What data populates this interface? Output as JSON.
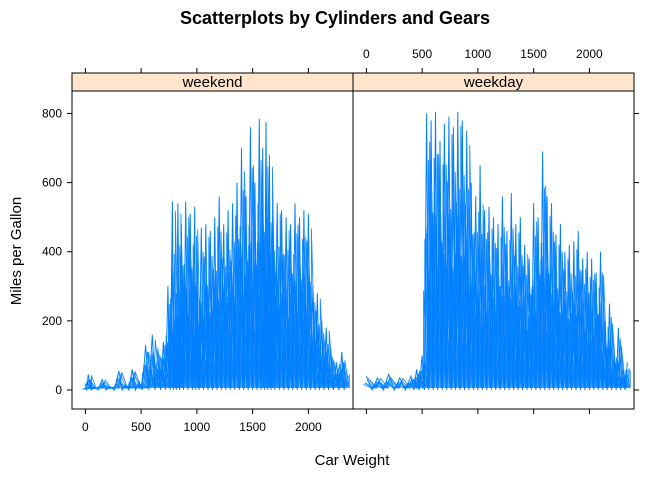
{
  "chart_data": {
    "type": "line",
    "title": "Scatterplots by Cylinders and Gears",
    "xlabel": "Car Weight",
    "ylabel": "Miles per Gallon",
    "xlim": [
      -120,
      2400
    ],
    "ylim": [
      -55,
      865
    ],
    "x_ticks": [
      0,
      500,
      1000,
      1500,
      2000
    ],
    "y_ticks": [
      0,
      200,
      400,
      600,
      800
    ],
    "line_color": "#0080ff",
    "strip_color": "#ffe5cc",
    "panels": [
      {
        "name": "weekend",
        "x": [
          0,
          25,
          80,
          150,
          220,
          300,
          360,
          420,
          480,
          540,
          600,
          650,
          700,
          740,
          780,
          800,
          830,
          860,
          900,
          940,
          980,
          1000,
          1040,
          1080,
          1120,
          1160,
          1200,
          1240,
          1280,
          1320,
          1360,
          1400,
          1440,
          1480,
          1520,
          1560,
          1590,
          1620,
          1650,
          1680,
          1720,
          1760,
          1800,
          1840,
          1880,
          1920,
          1960,
          2000,
          2040,
          2080,
          2120,
          2160,
          2200,
          2250,
          2300,
          2340
        ],
        "y": [
          5,
          45,
          8,
          30,
          10,
          55,
          15,
          60,
          25,
          130,
          160,
          120,
          140,
          300,
          545,
          200,
          540,
          480,
          545,
          510,
          530,
          300,
          470,
          480,
          460,
          500,
          560,
          480,
          520,
          540,
          600,
          700,
          560,
          760,
          600,
          785,
          700,
          775,
          680,
          500,
          540,
          520,
          500,
          480,
          540,
          500,
          520,
          510,
          300,
          280,
          200,
          180,
          120,
          80,
          110,
          50
        ]
      },
      {
        "name": "weekday",
        "x": [
          0,
          100,
          200,
          300,
          400,
          450,
          500,
          540,
          580,
          620,
          660,
          700,
          740,
          780,
          820,
          860,
          900,
          940,
          980,
          1020,
          1060,
          1100,
          1140,
          1180,
          1220,
          1260,
          1300,
          1340,
          1380,
          1420,
          1460,
          1500,
          1540,
          1580,
          1620,
          1660,
          1700,
          1740,
          1780,
          1820,
          1860,
          1900,
          1940,
          1980,
          2020,
          2060,
          2100,
          2140,
          2180,
          2220,
          2260,
          2300,
          2340
        ],
        "y": [
          40,
          35,
          45,
          35,
          40,
          60,
          100,
          800,
          780,
          805,
          720,
          770,
          790,
          760,
          805,
          780,
          750,
          600,
          560,
          650,
          520,
          530,
          500,
          480,
          560,
          460,
          570,
          480,
          500,
          420,
          380,
          540,
          500,
          690,
          560,
          540,
          450,
          480,
          400,
          420,
          430,
          460,
          380,
          400,
          380,
          340,
          400,
          200,
          250,
          100,
          180,
          60,
          80
        ]
      }
    ]
  }
}
